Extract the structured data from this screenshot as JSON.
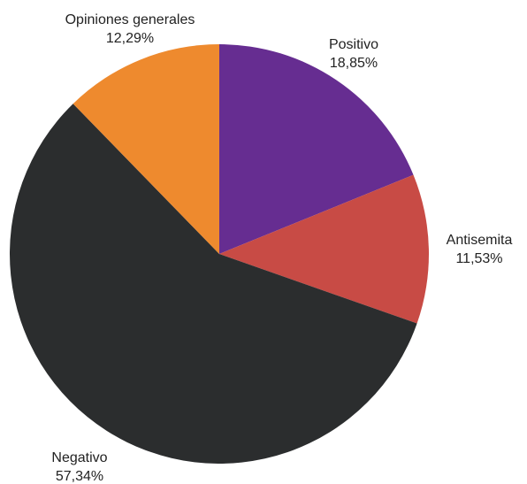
{
  "chart_data": {
    "type": "pie",
    "title": "",
    "start_angle_deg": 0,
    "direction": "clockwise",
    "slices": [
      {
        "label": "Positivo",
        "value_label": "18,85%",
        "value": 18.85,
        "color": "#662D91"
      },
      {
        "label": "Antisemita",
        "value_label": "11,53%",
        "value": 11.53,
        "color": "#C84B45"
      },
      {
        "label": "Negativo",
        "value_label": "57,34%",
        "value": 57.34,
        "color": "#2B2D2E"
      },
      {
        "label": "Opiniones generales",
        "value_label": "12,29%",
        "value": 12.29,
        "color": "#EE8A2E"
      }
    ]
  }
}
